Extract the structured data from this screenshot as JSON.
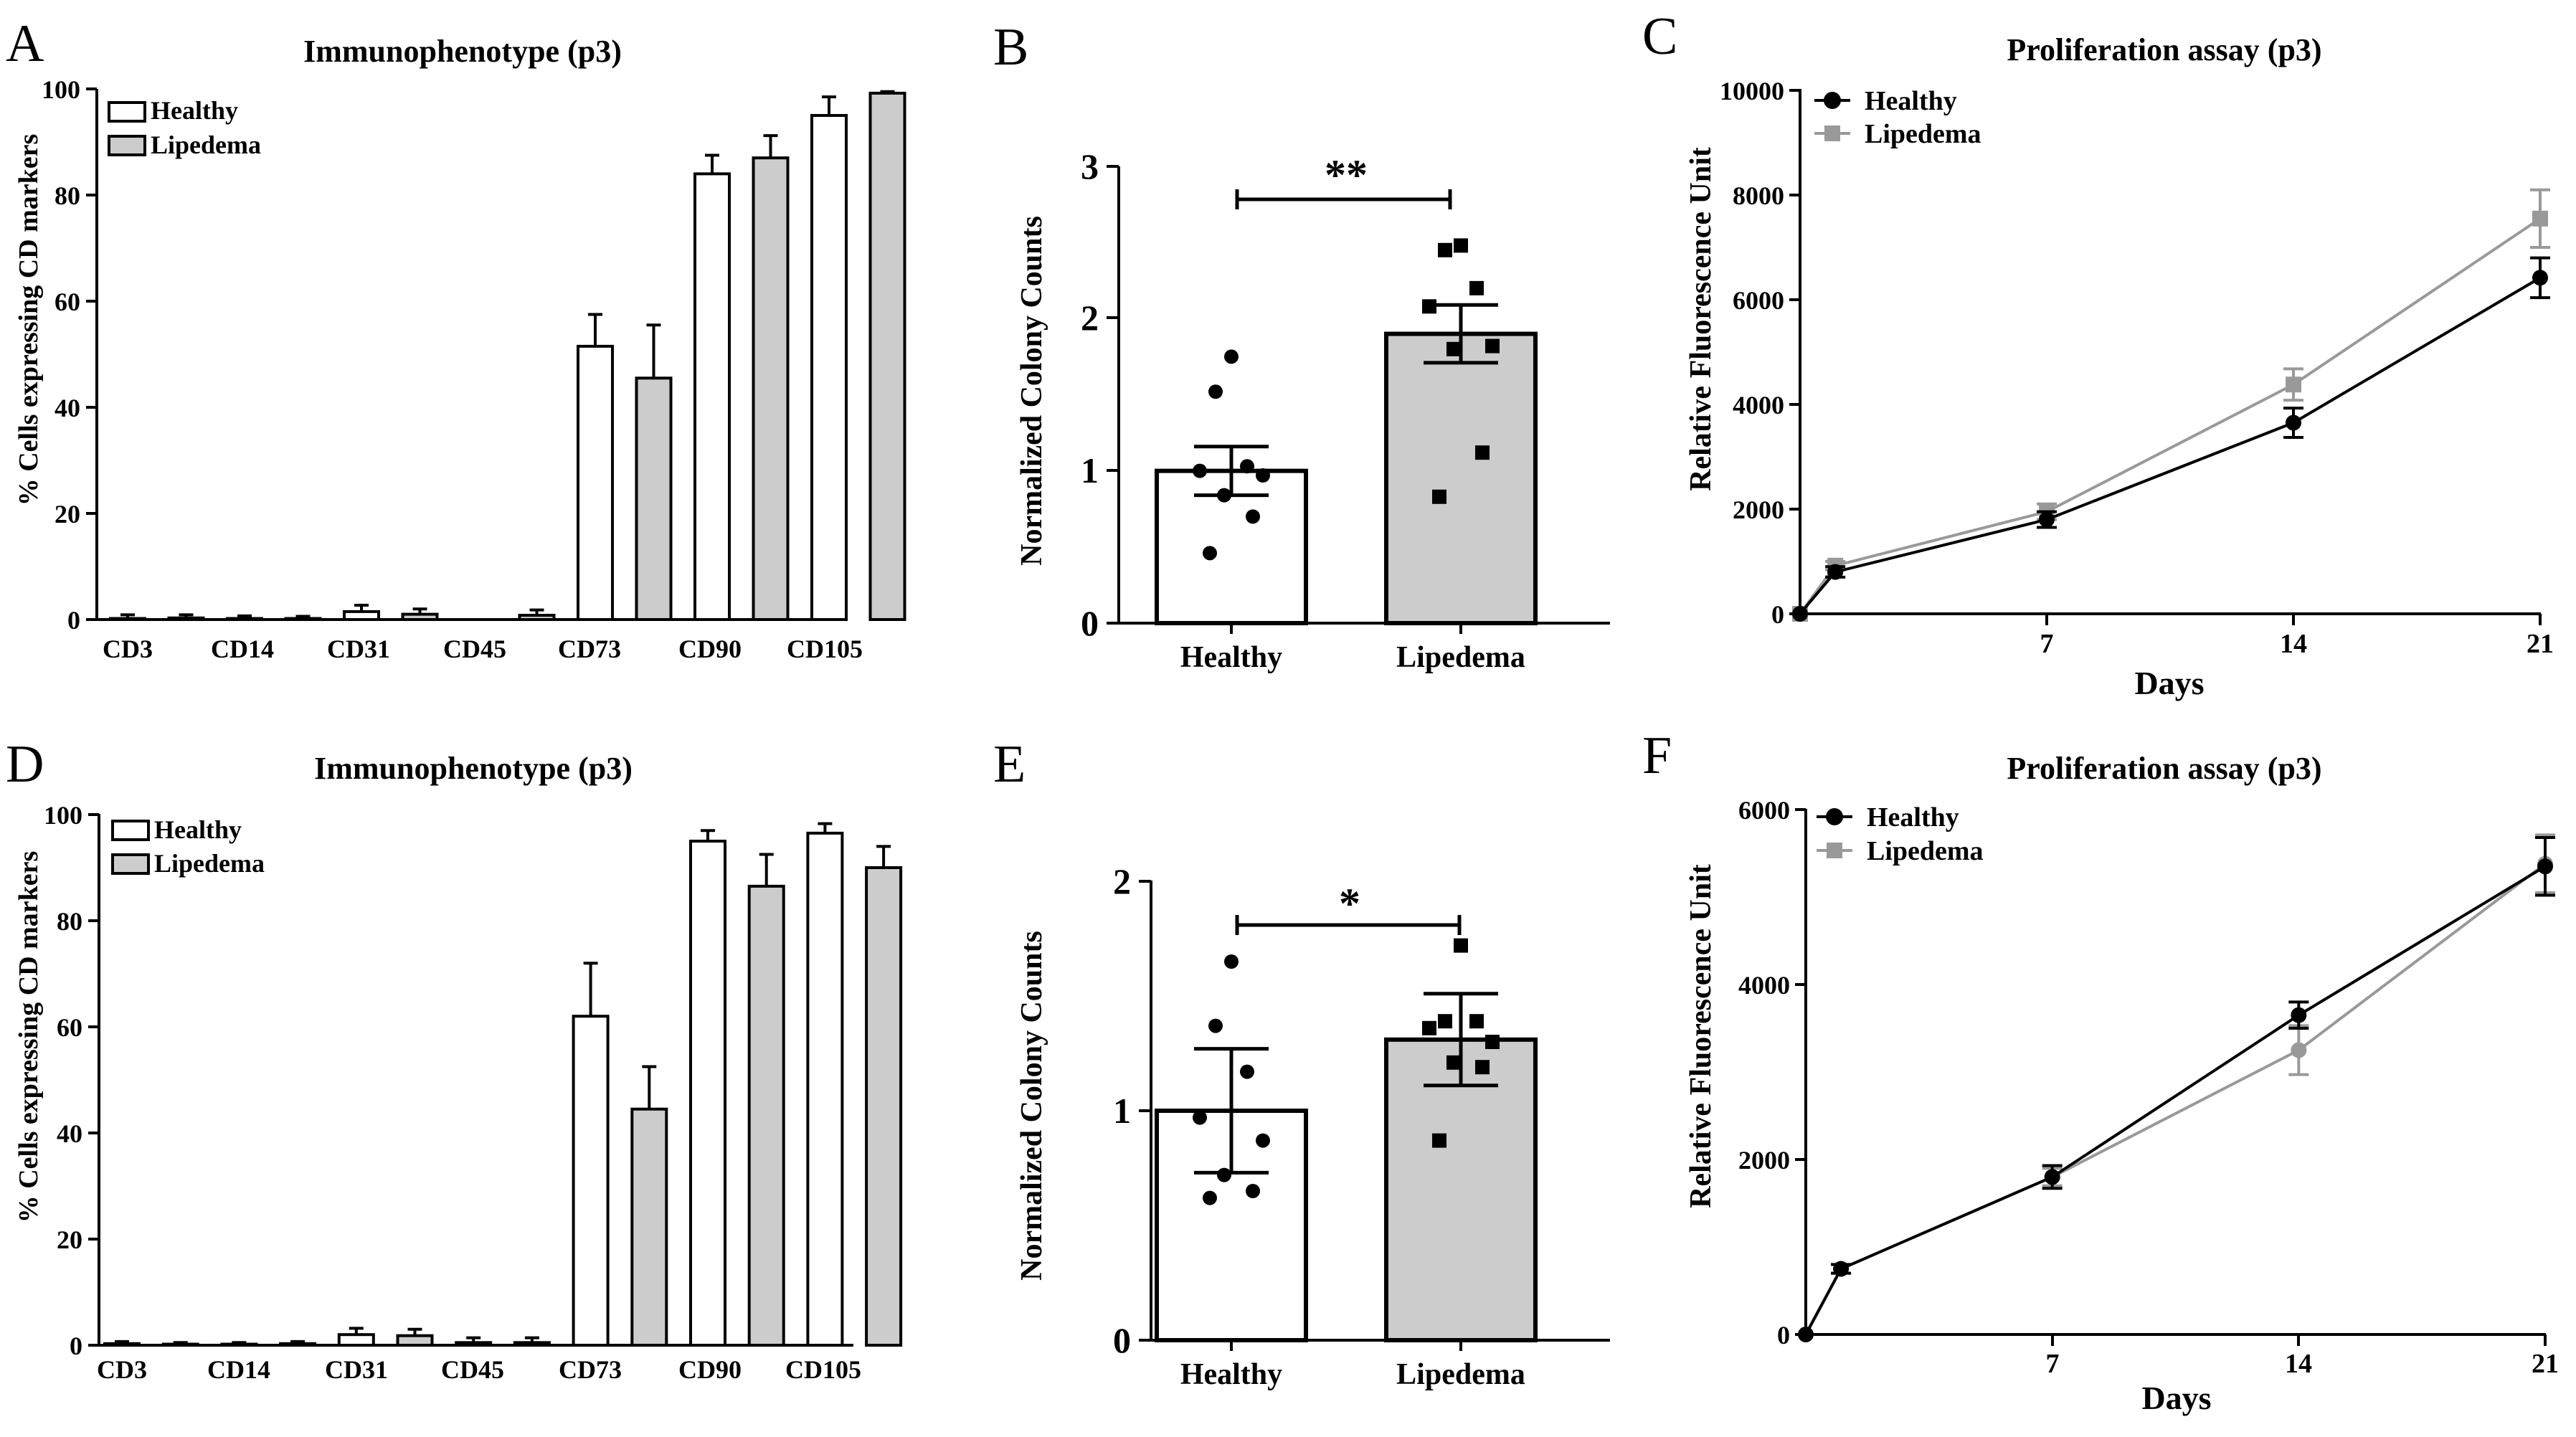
{
  "figure": {
    "panels": [
      "A",
      "B",
      "C",
      "D",
      "E",
      "F"
    ]
  },
  "colors": {
    "healthy_bar": "#ffffff",
    "lipedema_bar": "#cccccc",
    "healthy_line": "#000000",
    "lipedema_line": "#999999",
    "ink": "#000000"
  },
  "chart_data": [
    {
      "panel": "A",
      "type": "bar",
      "title": "Immunophenotype (p3)",
      "ylabel": "% Cells expressing CD markers",
      "xlabel": "",
      "ylim": [
        0,
        100
      ],
      "yticks": [
        "0",
        "20",
        "40",
        "60",
        "80",
        "100"
      ],
      "categories": [
        "CD3",
        "CD14",
        "CD31",
        "CD45",
        "CD73",
        "CD90",
        "CD105"
      ],
      "legend": [
        "Healthy",
        "Lipedema"
      ],
      "legend_position": "top-left",
      "series": [
        {
          "name": "Healthy",
          "values": [
            0.2,
            0.2,
            1.5,
            0.0,
            51.5,
            84.0,
            95.0
          ],
          "errors": [
            0.7,
            0.5,
            1.2,
            0.0,
            6.0,
            3.5,
            3.5
          ]
        },
        {
          "name": "Lipedema",
          "values": [
            0.3,
            0.2,
            1.0,
            0.8,
            45.5,
            87.0,
            99.2
          ],
          "errors": [
            0.6,
            0.4,
            1.0,
            1.0,
            10.0,
            4.2,
            0.3
          ]
        }
      ]
    },
    {
      "panel": "B",
      "type": "bar",
      "title": "",
      "ylabel": "Normalized Colony Counts",
      "xlabel": "",
      "ylim": [
        0,
        3
      ],
      "yticks": [
        "0",
        "1",
        "2",
        "3"
      ],
      "categories": [
        "Healthy",
        "Lipedema"
      ],
      "values": [
        1.0,
        1.9
      ],
      "errors": [
        0.16,
        0.19
      ],
      "significance": "**",
      "points": [
        {
          "group": "Healthy",
          "values": [
            1.75,
            1.52,
            1.03,
            1.0,
            0.97,
            0.84,
            0.7,
            0.46
          ]
        },
        {
          "group": "Lipedema",
          "values": [
            2.48,
            2.45,
            2.2,
            2.08,
            1.82,
            1.8,
            1.12,
            0.83
          ]
        }
      ]
    },
    {
      "panel": "C",
      "type": "line",
      "title": "Proliferation assay (p3)",
      "ylabel": "Relative Fluorescence Unit",
      "xlabel": "Days",
      "xlim": [
        0,
        21
      ],
      "ylim": [
        0,
        10000
      ],
      "xticks": [
        "7",
        "14",
        "21"
      ],
      "yticks": [
        "0",
        "2000",
        "4000",
        "6000",
        "8000",
        "10000"
      ],
      "legend": [
        "Healthy",
        "Lipedema"
      ],
      "legend_position": "top-left",
      "series": [
        {
          "name": "Healthy",
          "marker": "circle",
          "x": [
            0,
            1,
            7,
            14,
            21
          ],
          "values": [
            0,
            800,
            1800,
            3650,
            6420
          ],
          "errors": [
            0,
            100,
            150,
            280,
            380
          ]
        },
        {
          "name": "Lipedema",
          "marker": "square",
          "x": [
            0,
            1,
            7,
            14,
            21
          ],
          "values": [
            0,
            920,
            1950,
            4380,
            7550
          ],
          "errors": [
            0,
            80,
            150,
            300,
            550
          ]
        }
      ]
    },
    {
      "panel": "D",
      "type": "bar",
      "title": "Immunophenotype (p3)",
      "ylabel": "% Cells expressing CD markers",
      "xlabel": "",
      "ylim": [
        0,
        100
      ],
      "yticks": [
        "0",
        "20",
        "40",
        "60",
        "80",
        "100"
      ],
      "categories": [
        "CD3",
        "CD14",
        "CD31",
        "CD45",
        "CD73",
        "CD90",
        "CD105"
      ],
      "legend": [
        "Healthy",
        "Lipedema"
      ],
      "legend_position": "top-left",
      "series": [
        {
          "name": "Healthy",
          "values": [
            0.3,
            0.2,
            2.0,
            0.5,
            62.0,
            95.0,
            96.5
          ],
          "errors": [
            0.4,
            0.3,
            1.2,
            0.9,
            10.0,
            2.0,
            1.8
          ]
        },
        {
          "name": "Lipedema",
          "values": [
            0.2,
            0.3,
            1.8,
            0.5,
            44.5,
            86.5,
            90.0
          ],
          "errors": [
            0.3,
            0.4,
            1.2,
            0.9,
            8.0,
            6.0,
            4.0
          ]
        }
      ]
    },
    {
      "panel": "E",
      "type": "bar",
      "title": "",
      "ylabel": "Normalized Colony Counts",
      "xlabel": "",
      "ylim": [
        0,
        2
      ],
      "yticks": [
        "0",
        "1",
        "2"
      ],
      "categories": [
        "Healthy",
        "Lipedema"
      ],
      "values": [
        1.0,
        1.31
      ],
      "errors": [
        0.27,
        0.2
      ],
      "significance": "*",
      "points": [
        {
          "group": "Healthy",
          "values": [
            1.65,
            1.37,
            1.17,
            0.97,
            0.87,
            0.72,
            0.65,
            0.62
          ]
        },
        {
          "group": "Lipedema",
          "values": [
            1.72,
            1.39,
            1.39,
            1.36,
            1.3,
            1.21,
            1.19,
            0.87
          ]
        }
      ]
    },
    {
      "panel": "F",
      "type": "line",
      "title": "Proliferation assay (p3)",
      "ylabel": "Relative Fluorescence Unit",
      "xlabel": "Days",
      "xlim": [
        0,
        21
      ],
      "ylim": [
        0,
        6000
      ],
      "xticks": [
        "7",
        "14",
        "21"
      ],
      "yticks": [
        "0",
        "2000",
        "4000",
        "6000"
      ],
      "legend": [
        "Healthy",
        "Lipedema"
      ],
      "legend_position": "top-left",
      "series": [
        {
          "name": "Healthy",
          "marker": "circle",
          "x": [
            0,
            1,
            7,
            14,
            21
          ],
          "values": [
            0,
            750,
            1800,
            3650,
            5350
          ],
          "errors": [
            0,
            50,
            130,
            150,
            330
          ]
        },
        {
          "name": "Lipedema",
          "marker": "circle",
          "x": [
            0,
            1,
            7,
            14,
            21
          ],
          "values": [
            0,
            750,
            1800,
            3250,
            5380
          ],
          "errors": [
            0,
            50,
            100,
            280,
            330
          ]
        }
      ]
    }
  ]
}
